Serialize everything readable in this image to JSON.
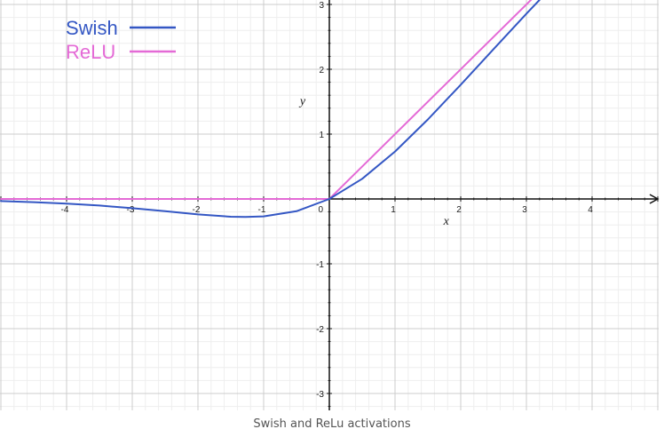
{
  "caption": "Swish and ReLu activations",
  "chart_data": {
    "type": "line",
    "title": "",
    "xlabel": "x",
    "ylabel": "y",
    "xlim": [
      -5,
      5
    ],
    "ylim": [
      -3.2,
      3.1
    ],
    "grid": true,
    "legend_position": "top-left",
    "x_ticks": [
      "-4",
      "-3",
      "-2",
      "-1",
      "1",
      "2",
      "3",
      "4"
    ],
    "y_ticks": [
      "-3",
      "-2",
      "-1",
      "1",
      "2",
      "3"
    ],
    "origin_label": "0",
    "series": [
      {
        "name": "Swish",
        "color": "#3457c4",
        "x": [
          -5,
          -4.5,
          -4,
          -3.5,
          -3,
          -2.5,
          -2,
          -1.5,
          -1.278,
          -1,
          -0.5,
          0,
          0.5,
          1,
          1.5,
          2,
          2.5,
          3,
          3.2
        ],
        "y": [
          -0.033,
          -0.049,
          -0.072,
          -0.102,
          -0.142,
          -0.189,
          -0.238,
          -0.274,
          -0.278,
          -0.269,
          -0.189,
          0,
          0.311,
          0.731,
          1.226,
          1.762,
          2.311,
          2.858,
          3.07
        ]
      },
      {
        "name": "ReLU",
        "color": "#e46ad6",
        "x": [
          -5,
          0,
          3.1
        ],
        "y": [
          0,
          0,
          3.1
        ]
      }
    ]
  }
}
